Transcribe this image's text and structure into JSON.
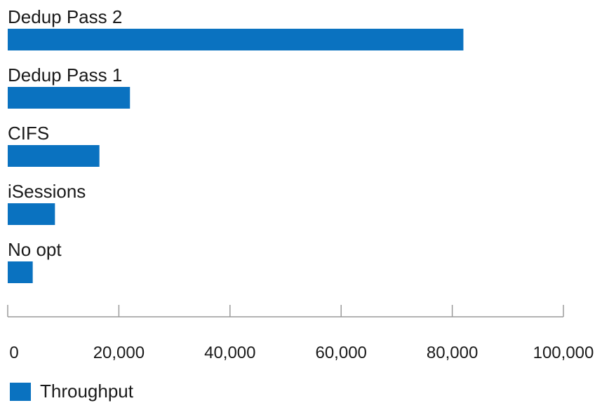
{
  "chart_data": {
    "type": "bar",
    "orientation": "horizontal",
    "title": "",
    "xlabel": "",
    "ylabel": "",
    "categories": [
      "Dedup Pass 2",
      "Dedup Pass 1",
      "CIFS",
      "iSessions",
      "No opt"
    ],
    "series": [
      {
        "name": "Throughput",
        "color": "#0a72c0",
        "values": [
          82000,
          22000,
          16500,
          8500,
          4500
        ]
      }
    ],
    "xlim": [
      0,
      100000
    ],
    "xticks": [
      0,
      20000,
      40000,
      60000,
      80000,
      100000
    ],
    "xtick_labels": [
      "0",
      "20,000",
      "40,000",
      "60,000",
      "80,000",
      "100,000"
    ],
    "grid": false,
    "legend": {
      "position": "bottom-left",
      "entries": [
        "Throughput"
      ]
    }
  }
}
